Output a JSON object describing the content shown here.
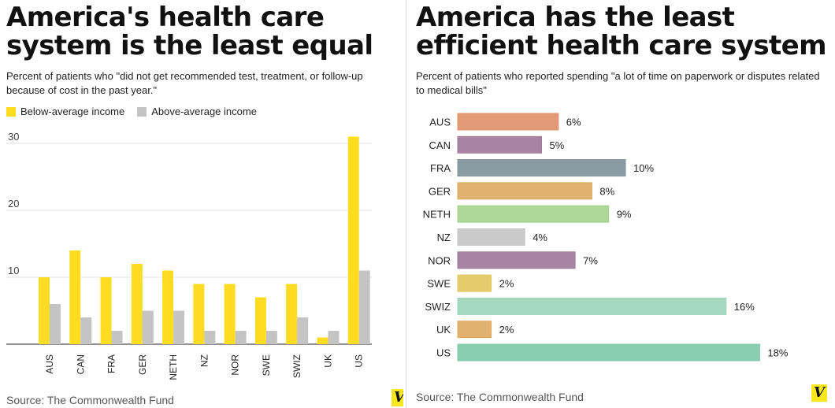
{
  "left": {
    "title_line1": "America's health care",
    "title_line2": "system is the least equal",
    "subtitle_line1": "Percent of patients who \"did not get recommended test, treatment, or follow-up",
    "subtitle_line2": "because of cost in the past year.\"",
    "source": "Source: The Commonwealth Fund",
    "logo": "V"
  },
  "right": {
    "title_line1": "America has the least",
    "title_line2": "efficient health care system",
    "subtitle_line1": "Percent of patients who reported spending \"a lot of time on paperwork or disputes related",
    "subtitle_line2": "to medical bills\"",
    "source": "Source: The Commonwealth Fund",
    "logo": "V"
  },
  "chart_data": [
    {
      "type": "bar",
      "title": "America's health care system is the least equal",
      "categories": [
        "AUS",
        "CAN",
        "FRA",
        "GER",
        "NETH",
        "NZ",
        "NOR",
        "SWE",
        "SWIZ",
        "UK",
        "US"
      ],
      "series": [
        {
          "name": "Below-average income",
          "color": "#fddc22",
          "values": [
            10,
            14,
            10,
            12,
            11,
            9,
            9,
            7,
            9,
            1,
            31
          ]
        },
        {
          "name": "Above-average income",
          "color": "#c4c4c4",
          "values": [
            6,
            4,
            2,
            5,
            5,
            2,
            2,
            2,
            4,
            2,
            11
          ]
        }
      ],
      "yticks": [
        10,
        20,
        30
      ],
      "ylim": [
        0,
        32
      ],
      "legend": "top-left",
      "grid": true
    },
    {
      "type": "bar",
      "orientation": "horizontal",
      "title": "America has the least efficient health care system",
      "categories": [
        "AUS",
        "CAN",
        "FRA",
        "GER",
        "NETH",
        "NZ",
        "NOR",
        "SWE",
        "SWIZ",
        "UK",
        "US"
      ],
      "values": [
        6,
        5,
        10,
        8,
        9,
        4,
        7,
        2,
        16,
        2,
        18
      ],
      "value_labels": [
        "6%",
        "5%",
        "10%",
        "8%",
        "9%",
        "4%",
        "7%",
        "2%",
        "16%",
        "2%",
        "18%"
      ],
      "colors": [
        "#e0926a",
        "#a17a9a",
        "#7f949b",
        "#deaa63",
        "#a6d48e",
        "#c6c6c6",
        "#a17a9a",
        "#e3c75e",
        "#9dd5bc",
        "#deaa63",
        "#7fcaaa"
      ],
      "xlim": [
        0,
        18
      ]
    }
  ]
}
